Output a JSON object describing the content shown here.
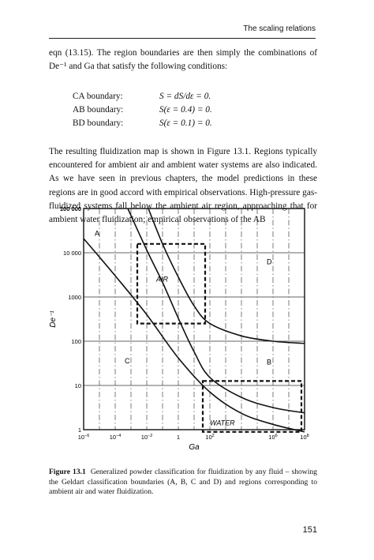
{
  "header": {
    "running_title": "The scaling relations"
  },
  "intro": {
    "text": "eqn (13.15). The region boundaries are then simply the combinations of De⁻¹ and Ga that satisfy the following conditions:"
  },
  "conditions": [
    {
      "label": "CA boundary:",
      "expr": "S = dS/dε = 0."
    },
    {
      "label": "AB boundary:",
      "expr": "S(ε = 0.4) = 0."
    },
    {
      "label": "BD boundary:",
      "expr": "S(ε = 0.1) = 0."
    }
  ],
  "body": {
    "text": "The resulting fluidization map is shown in Figure 13.1. Regions typically encountered for ambient air and ambient water systems are also indicated. As we have seen in previous chapters, the model predictions in these regions are in good accord with empirical observations. High-pressure gas-fluidized systems fall below the ambient air region, approaching that for ambient water fluidization; empirical observations of the AB"
  },
  "chart_data": {
    "type": "line",
    "xlabel": "Ga",
    "ylabel": "De⁻¹",
    "xscale": "log",
    "yscale": "log",
    "xlim_log10": [
      -6,
      8
    ],
    "ylim_log10": [
      0,
      5
    ],
    "x_ticks": [
      {
        "base": "10",
        "exp": "−6",
        "log": -6
      },
      {
        "base": "10",
        "exp": "−4",
        "log": -4
      },
      {
        "base": "10",
        "exp": "−2",
        "log": -2
      },
      {
        "base": "1",
        "exp": "",
        "log": 0
      },
      {
        "base": "10",
        "exp": "2",
        "log": 2
      },
      {
        "base": "10",
        "exp": "6",
        "log": 6
      },
      {
        "base": "10",
        "exp": "8",
        "log": 8
      }
    ],
    "y_ticks": [
      {
        "label": "1",
        "log": 0
      },
      {
        "label": "10",
        "log": 1
      },
      {
        "label": "100",
        "log": 2
      },
      {
        "label": "1000",
        "log": 3
      },
      {
        "label": "10 000",
        "log": 4
      },
      {
        "label": "100 000",
        "log": 5
      }
    ],
    "grid_x_log": [
      -5,
      -4,
      -3,
      -2,
      -1,
      0,
      1,
      2,
      3,
      4,
      5,
      6,
      7
    ],
    "series": [
      {
        "boundary": "CA",
        "points_log10": [
          [
            -6,
            4.32
          ],
          [
            -4,
            3.48
          ],
          [
            -2,
            2.6
          ],
          [
            0,
            1.62
          ],
          [
            2,
            0.85
          ],
          [
            4,
            0.37
          ],
          [
            6,
            0.12
          ],
          [
            8,
            -0.05
          ]
        ]
      },
      {
        "boundary": "AB",
        "points_log10": [
          [
            -3.2,
            5
          ],
          [
            -2,
            4.06
          ],
          [
            -1,
            3.33
          ],
          [
            0,
            2.52
          ],
          [
            1,
            1.76
          ],
          [
            2,
            1.18
          ],
          [
            4,
            0.73
          ],
          [
            6,
            0.5
          ],
          [
            8,
            0.38
          ]
        ]
      },
      {
        "boundary": "BD",
        "points_log10": [
          [
            -1.9,
            5
          ],
          [
            -1,
            4.2
          ],
          [
            0,
            3.45
          ],
          [
            1,
            2.8
          ],
          [
            2,
            2.4
          ],
          [
            4,
            2.12
          ],
          [
            6,
            2.0
          ],
          [
            8,
            1.95
          ]
        ]
      }
    ],
    "regions": [
      {
        "label": "A",
        "log_x": -5.3,
        "log_y": 4.38
      },
      {
        "label": "C",
        "log_x": -3.4,
        "log_y": 1.5
      },
      {
        "label": "D",
        "log_x": 5.6,
        "log_y": 3.74
      },
      {
        "label": "B",
        "log_x": 5.6,
        "log_y": 1.47
      }
    ],
    "boxes": [
      {
        "label": "AIR",
        "x_log": [
          -2.6,
          1.7
        ],
        "y_log": [
          2.4,
          4.2
        ],
        "label_pos_log": [
          -1.4,
          3.35
        ]
      },
      {
        "label": "WATER",
        "x_log": [
          1.55,
          7.8
        ],
        "y_log": [
          -0.05,
          1.1
        ],
        "label_pos_log": [
          2.0,
          0.1
        ]
      }
    ]
  },
  "figure": {
    "label": "Figure 13.1",
    "caption": "Generalized powder classification for fluidization by any fluid – showing the Geldart classification boundaries (A, B, C and D) and regions corresponding to ambient air and water fluidization."
  },
  "page_number": "151"
}
